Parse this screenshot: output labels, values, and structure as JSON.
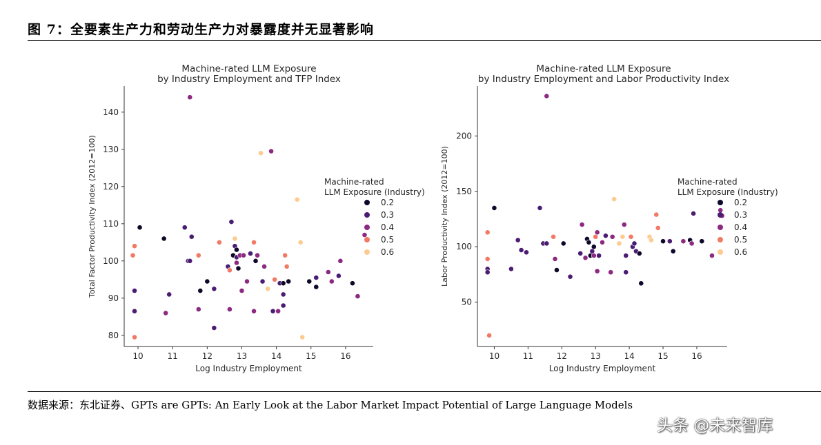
{
  "header": {
    "title": "图 7：全要素生产力和劳动生产力对暴露度并无显著影响"
  },
  "source": "数据来源：东北证券、GPTs are GPTs: An Early Look at the Labor Market Impact Potential of Large Language Models",
  "watermark": "头条 @未来智库",
  "palette": {
    "0.2": "#10082a",
    "0.3": "#4b1c73",
    "0.4": "#8c2981",
    "0.5": "#f17a64",
    "0.6": "#fdcb8f"
  },
  "chart_data": [
    {
      "type": "scatter",
      "title": "Machine-rated LLM Exposure\nby Industry Employment and TFP Index",
      "xlabel": "Log Industry Employment",
      "ylabel": "Total Factor Productivity Index (2012=100)",
      "xlim": [
        9.6,
        16.8
      ],
      "ylim": [
        77,
        147
      ],
      "xticks": [
        10,
        11,
        12,
        13,
        14,
        15,
        16
      ],
      "yticks": [
        80,
        90,
        100,
        110,
        120,
        130,
        140
      ],
      "legend": {
        "title": "Machine-rated\nLLM Exposure (Industry)",
        "entries": [
          "0.2",
          "0.3",
          "0.4",
          "0.5",
          "0.6"
        ],
        "placement": "center-right"
      },
      "points": [
        [
          9.85,
          101.5,
          0.5
        ],
        [
          9.9,
          104,
          0.5
        ],
        [
          9.9,
          92,
          0.3
        ],
        [
          9.9,
          86.5,
          0.3
        ],
        [
          9.9,
          79.5,
          0.5
        ],
        [
          10.05,
          109,
          0.2
        ],
        [
          10.75,
          106,
          0.2
        ],
        [
          10.8,
          86,
          0.4
        ],
        [
          10.9,
          91,
          0.3
        ],
        [
          11.35,
          109,
          0.3
        ],
        [
          11.45,
          100,
          0.3
        ],
        [
          11.5,
          100,
          0.3
        ],
        [
          11.55,
          106.5,
          0.3
        ],
        [
          11.5,
          144,
          0.4
        ],
        [
          11.75,
          101.5,
          0.5
        ],
        [
          11.75,
          87,
          0.4
        ],
        [
          11.8,
          92,
          0.2
        ],
        [
          12.0,
          94.5,
          0.2
        ],
        [
          12.2,
          92.5,
          0.3
        ],
        [
          12.2,
          82,
          0.3
        ],
        [
          12.35,
          105,
          0.5
        ],
        [
          12.6,
          98.5,
          0.3
        ],
        [
          12.65,
          97.5,
          0.5
        ],
        [
          12.65,
          87,
          0.4
        ],
        [
          12.7,
          110.5,
          0.3
        ],
        [
          12.75,
          101.5,
          0.2
        ],
        [
          12.8,
          106,
          0.6
        ],
        [
          12.8,
          104,
          0.3
        ],
        [
          12.85,
          103,
          0.2
        ],
        [
          12.85,
          101,
          0.3
        ],
        [
          12.85,
          99.5,
          0.4
        ],
        [
          12.9,
          98,
          0.2
        ],
        [
          12.95,
          101.5,
          0.4
        ],
        [
          13.0,
          92,
          0.4
        ],
        [
          13.05,
          101.5,
          0.4
        ],
        [
          13.15,
          94.5,
          0.4
        ],
        [
          13.25,
          102,
          0.3
        ],
        [
          13.35,
          105,
          0.5
        ],
        [
          13.4,
          100,
          0.2
        ],
        [
          13.45,
          101.5,
          0.4
        ],
        [
          13.35,
          86.5,
          0.4
        ],
        [
          13.55,
          129,
          0.6
        ],
        [
          13.6,
          94.5,
          0.3
        ],
        [
          13.65,
          98.5,
          0.4
        ],
        [
          13.75,
          92.5,
          0.6
        ],
        [
          13.85,
          129.5,
          0.4
        ],
        [
          13.9,
          86.5,
          0.3
        ],
        [
          13.95,
          95,
          0.5
        ],
        [
          14.05,
          86.5,
          0.4
        ],
        [
          14.1,
          94,
          0.3
        ],
        [
          14.2,
          94,
          0.2
        ],
        [
          14.2,
          91,
          0.3
        ],
        [
          14.2,
          88,
          0.3
        ],
        [
          14.25,
          101.5,
          0.5
        ],
        [
          14.3,
          98.5,
          0.5
        ],
        [
          14.35,
          94.5,
          0.2
        ],
        [
          14.6,
          116.5,
          0.6
        ],
        [
          14.7,
          105,
          0.6
        ],
        [
          14.75,
          79.5,
          0.6
        ],
        [
          14.95,
          94.5,
          0.2
        ],
        [
          15.15,
          95.5,
          0.3
        ],
        [
          15.15,
          93,
          0.2
        ],
        [
          15.5,
          97,
          0.4
        ],
        [
          15.6,
          94.5,
          0.4
        ],
        [
          15.8,
          96,
          0.3
        ],
        [
          15.85,
          100,
          0.4
        ],
        [
          16.2,
          94,
          0.2
        ],
        [
          16.35,
          90.5,
          0.4
        ],
        [
          16.55,
          107,
          0.4
        ]
      ]
    },
    {
      "type": "scatter",
      "title": "Machine-rated LLM Exposure\nby Industry Employment and Labor Productivity Index",
      "xlabel": "Log Industry Employment",
      "ylabel": "Labor Productivity Index (2012=100)",
      "xlim": [
        9.5,
        16.9
      ],
      "ylim": [
        10,
        245
      ],
      "xticks": [
        10,
        11,
        12,
        13,
        14,
        15,
        16
      ],
      "yticks": [
        50,
        100,
        150,
        200
      ],
      "legend": {
        "title": "Machine-rated\nLLM Exposure (Industry)",
        "entries": [
          "0.2",
          "0.3",
          "0.4",
          "0.5",
          "0.6"
        ],
        "placement": "center-right"
      },
      "points": [
        [
          9.8,
          113,
          0.5
        ],
        [
          9.8,
          89,
          0.5
        ],
        [
          9.8,
          80,
          0.3
        ],
        [
          9.8,
          77,
          0.3
        ],
        [
          9.85,
          20,
          0.5
        ],
        [
          10.0,
          135,
          0.2
        ],
        [
          10.5,
          80,
          0.3
        ],
        [
          10.7,
          106,
          0.3
        ],
        [
          10.8,
          97,
          0.3
        ],
        [
          10.95,
          95,
          0.3
        ],
        [
          11.35,
          135,
          0.3
        ],
        [
          11.45,
          103,
          0.3
        ],
        [
          11.55,
          103,
          0.3
        ],
        [
          11.55,
          236,
          0.4
        ],
        [
          11.75,
          109,
          0.5
        ],
        [
          11.8,
          89,
          0.4
        ],
        [
          11.85,
          79,
          0.2
        ],
        [
          12.05,
          103,
          0.2
        ],
        [
          12.25,
          73,
          0.3
        ],
        [
          12.55,
          94,
          0.3
        ],
        [
          12.6,
          120,
          0.4
        ],
        [
          12.7,
          90,
          0.4
        ],
        [
          12.75,
          107,
          0.2
        ],
        [
          12.8,
          104,
          0.2
        ],
        [
          12.85,
          92,
          0.2
        ],
        [
          12.9,
          96,
          0.3
        ],
        [
          12.95,
          100,
          0.2
        ],
        [
          12.95,
          92,
          0.4
        ],
        [
          13.0,
          109,
          0.5
        ],
        [
          13.05,
          113,
          0.4
        ],
        [
          13.1,
          92,
          0.3
        ],
        [
          13.05,
          78,
          0.4
        ],
        [
          13.2,
          104,
          0.4
        ],
        [
          13.3,
          110,
          0.3
        ],
        [
          13.45,
          77,
          0.4
        ],
        [
          13.5,
          109,
          0.4
        ],
        [
          13.55,
          143,
          0.6
        ],
        [
          13.7,
          103,
          0.6
        ],
        [
          13.8,
          109,
          0.6
        ],
        [
          13.85,
          120,
          0.4
        ],
        [
          13.9,
          92,
          0.3
        ],
        [
          13.9,
          77,
          0.3
        ],
        [
          14.05,
          109,
          0.5
        ],
        [
          14.1,
          100,
          0.3
        ],
        [
          14.15,
          103,
          0.3
        ],
        [
          14.2,
          96,
          0.3
        ],
        [
          14.3,
          94,
          0.2
        ],
        [
          14.35,
          67,
          0.2
        ],
        [
          14.6,
          109,
          0.6
        ],
        [
          14.65,
          106,
          0.6
        ],
        [
          14.8,
          129,
          0.5
        ],
        [
          14.85,
          117,
          0.5
        ],
        [
          15.0,
          105,
          0.2
        ],
        [
          15.2,
          105,
          0.3
        ],
        [
          15.3,
          96,
          0.2
        ],
        [
          15.6,
          105,
          0.4
        ],
        [
          15.8,
          106,
          0.2
        ],
        [
          15.85,
          103,
          0.4
        ],
        [
          15.9,
          130,
          0.3
        ],
        [
          16.15,
          105,
          0.2
        ],
        [
          16.45,
          92,
          0.4
        ],
        [
          16.7,
          133,
          0.4
        ],
        [
          16.75,
          128,
          0.4
        ]
      ]
    }
  ]
}
